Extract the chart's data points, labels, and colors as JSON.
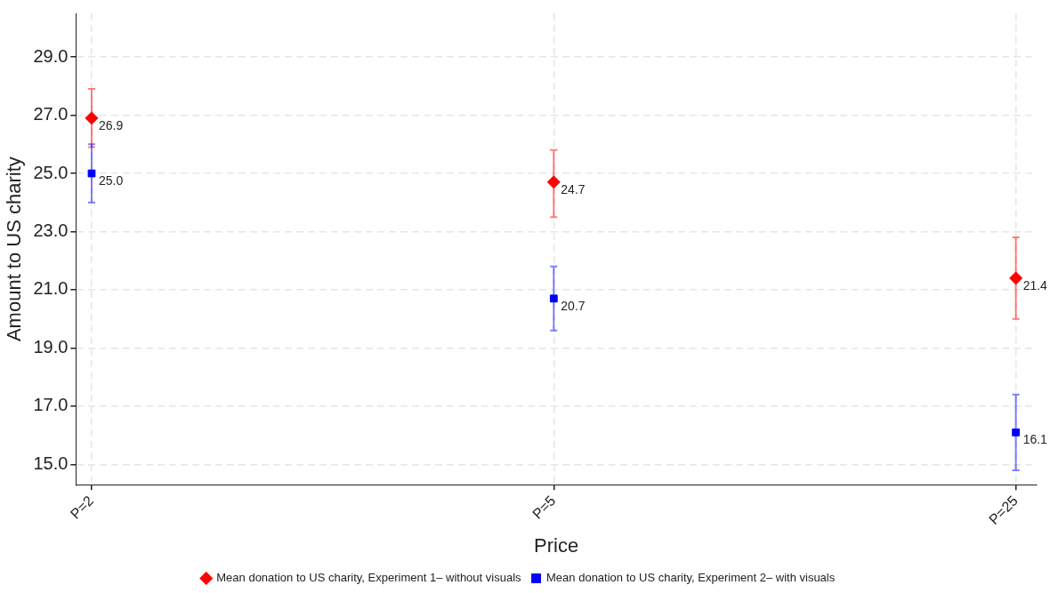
{
  "chart_data": {
    "type": "scatter",
    "xlabel": "Price",
    "ylabel": "Amount to US charity",
    "categories": [
      "P=2",
      "P=5",
      "P=25"
    ],
    "series": [
      {
        "name": "Mean donation to US charity, Experiment 1– without visuals",
        "color": "#ff0000",
        "marker": "diamond",
        "values": [
          26.9,
          24.7,
          21.4
        ],
        "errors": [
          [
            25.9,
            27.9
          ],
          [
            23.5,
            25.8
          ],
          [
            20.0,
            22.8
          ]
        ],
        "value_labels": [
          "26.9",
          "24.7",
          "21.4"
        ]
      },
      {
        "name": "Mean donation to US charity, Experiment 2– with visuals",
        "color": "#0000ff",
        "marker": "square",
        "values": [
          25.0,
          20.7,
          16.1
        ],
        "errors": [
          [
            24.0,
            26.0
          ],
          [
            19.6,
            21.8
          ],
          [
            14.8,
            17.4
          ]
        ],
        "value_labels": [
          "25.0",
          "20.7",
          "16.1"
        ]
      }
    ],
    "ylim": [
      14.3,
      30.5
    ],
    "yticks": [
      {
        "value": 15,
        "label": "15.0"
      },
      {
        "value": 17,
        "label": "17.0"
      },
      {
        "value": 19,
        "label": "19.0"
      },
      {
        "value": 21,
        "label": "21.0"
      },
      {
        "value": 23,
        "label": "23.0"
      },
      {
        "value": 25,
        "label": "25.0"
      },
      {
        "value": 27,
        "label": "27.0"
      },
      {
        "value": 29,
        "label": "29.0"
      }
    ],
    "grid": true,
    "legend": "bottom"
  }
}
